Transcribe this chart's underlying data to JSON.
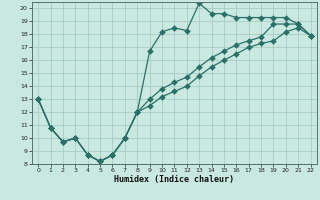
{
  "xlabel": "Humidex (Indice chaleur)",
  "xlim": [
    -0.5,
    22.5
  ],
  "ylim": [
    8,
    20.5
  ],
  "yticks": [
    8,
    9,
    10,
    11,
    12,
    13,
    14,
    15,
    16,
    17,
    18,
    19,
    20
  ],
  "xticks": [
    0,
    1,
    2,
    3,
    4,
    5,
    6,
    7,
    8,
    9,
    10,
    11,
    12,
    13,
    14,
    15,
    16,
    17,
    18,
    19,
    20,
    21,
    22
  ],
  "bg_color": "#c8e8e0",
  "grid_color": "#a0c8c0",
  "line_color": "#2a7068",
  "line1_x": [
    0,
    1,
    2,
    3,
    4,
    5,
    6,
    7,
    8,
    9,
    10,
    11,
    12,
    13,
    14,
    15,
    16,
    17,
    18,
    19,
    20,
    21,
    22
  ],
  "line1_y": [
    13,
    10.8,
    9.7,
    10.0,
    8.7,
    8.2,
    8.7,
    10.0,
    12.0,
    16.7,
    18.2,
    18.5,
    18.3,
    20.4,
    19.6,
    19.6,
    19.3,
    19.3,
    19.3,
    19.3,
    19.3,
    18.8,
    17.9
  ],
  "line2_x": [
    0,
    1,
    2,
    3,
    4,
    5,
    6,
    7,
    8,
    9,
    10,
    11,
    12,
    13,
    14,
    15,
    16,
    17,
    18,
    19,
    20,
    21,
    22
  ],
  "line2_y": [
    13,
    10.8,
    9.7,
    10.0,
    8.7,
    8.2,
    8.7,
    10.0,
    12.0,
    13.0,
    13.8,
    14.3,
    14.7,
    15.5,
    16.2,
    16.7,
    17.2,
    17.5,
    17.8,
    18.8,
    18.8,
    18.8,
    17.9
  ],
  "line3_x": [
    0,
    1,
    2,
    3,
    4,
    5,
    6,
    7,
    8,
    9,
    10,
    11,
    12,
    13,
    14,
    15,
    16,
    17,
    18,
    19,
    20,
    21,
    22
  ],
  "line3_y": [
    13,
    10.8,
    9.7,
    10.0,
    8.7,
    8.2,
    8.7,
    10.0,
    12.0,
    12.5,
    13.2,
    13.6,
    14.0,
    14.8,
    15.5,
    16.0,
    16.5,
    17.0,
    17.3,
    17.5,
    18.2,
    18.5,
    17.9
  ]
}
